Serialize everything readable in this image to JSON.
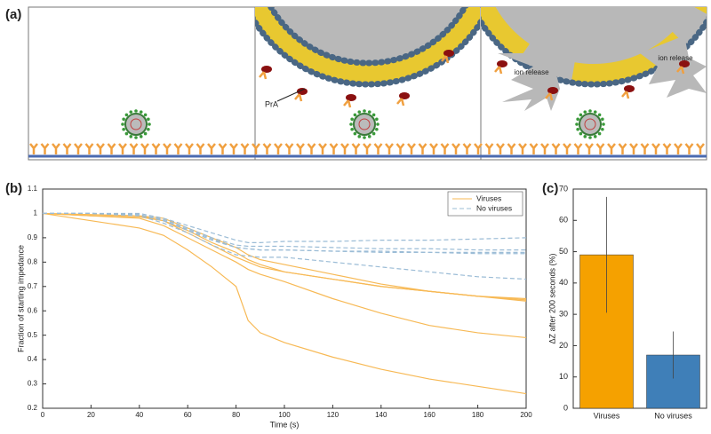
{
  "illustration": {
    "panel_label": "(a)",
    "protein_label": "PrA",
    "release_labels": [
      "ion release",
      "ion release"
    ]
  },
  "chart_data": [
    {
      "type": "line",
      "panel_label": "(b)",
      "x_label": "Time (s)",
      "y_label": "Fraction of starting impedance",
      "x": [
        0,
        20,
        40,
        50,
        60,
        70,
        80,
        85,
        90,
        100,
        120,
        140,
        160,
        180,
        200
      ],
      "xlim": [
        0,
        200
      ],
      "ylim": [
        0.2,
        1.1
      ],
      "xticks": [
        0,
        20,
        40,
        60,
        80,
        100,
        120,
        140,
        160,
        180,
        200
      ],
      "yticks": [
        0.2,
        0.3,
        0.4,
        0.5,
        0.6,
        0.7,
        0.8,
        0.9,
        1,
        1.1
      ],
      "legend": "upper right",
      "series": [
        {
          "name": "Viruses",
          "color": "#f7b955",
          "dash": false,
          "values": [
            [
              1,
              0.97,
              0.94,
              0.91,
              0.85,
              0.78,
              0.7,
              0.56,
              0.51,
              0.47,
              0.41,
              0.36,
              0.32,
              0.29,
              0.26
            ],
            [
              1,
              0.99,
              0.98,
              0.95,
              0.9,
              0.85,
              0.8,
              0.77,
              0.75,
              0.72,
              0.65,
              0.59,
              0.54,
              0.51,
              0.49
            ],
            [
              1,
              0.995,
              0.99,
              0.97,
              0.93,
              0.88,
              0.84,
              0.81,
              0.79,
              0.76,
              0.73,
              0.7,
              0.68,
              0.66,
              0.64
            ],
            [
              1,
              0.995,
              0.99,
              0.98,
              0.94,
              0.9,
              0.86,
              0.83,
              0.81,
              0.79,
              0.75,
              0.71,
              0.68,
              0.66,
              0.65
            ],
            [
              1,
              0.99,
              0.985,
              0.97,
              0.92,
              0.87,
              0.82,
              0.8,
              0.78,
              0.76,
              0.73,
              0.7,
              0.68,
              0.66,
              0.645
            ]
          ]
        },
        {
          "name": "No viruses",
          "color": "#9bbcd6",
          "dash": true,
          "values": [
            [
              1,
              1,
              1,
              0.98,
              0.95,
              0.92,
              0.89,
              0.88,
              0.88,
              0.885,
              0.885,
              0.89,
              0.89,
              0.895,
              0.9
            ],
            [
              1,
              1,
              0.995,
              0.975,
              0.94,
              0.9,
              0.87,
              0.865,
              0.865,
              0.865,
              0.86,
              0.855,
              0.855,
              0.85,
              0.85
            ],
            [
              1,
              1,
              0.995,
              0.97,
              0.93,
              0.89,
              0.86,
              0.855,
              0.85,
              0.85,
              0.845,
              0.845,
              0.84,
              0.84,
              0.84
            ],
            [
              1,
              1,
              0.99,
              0.96,
              0.92,
              0.87,
              0.83,
              0.825,
              0.82,
              0.82,
              0.8,
              0.78,
              0.76,
              0.74,
              0.73
            ],
            [
              1,
              1,
              0.995,
              0.97,
              0.935,
              0.895,
              0.86,
              0.855,
              0.85,
              0.85,
              0.845,
              0.84,
              0.84,
              0.835,
              0.835
            ]
          ]
        }
      ]
    },
    {
      "type": "bar",
      "panel_label": "(c)",
      "y_label": "ΔZ after 200 seconds (%)",
      "categories": [
        "Viruses",
        "No viruses"
      ],
      "values": [
        49,
        17
      ],
      "errors": [
        18.5,
        7.5
      ],
      "colors": [
        "#f5a100",
        "#3f7fb8"
      ],
      "ylim": [
        0,
        70
      ],
      "yticks": [
        0,
        10,
        20,
        30,
        40,
        50,
        60,
        70
      ]
    }
  ]
}
